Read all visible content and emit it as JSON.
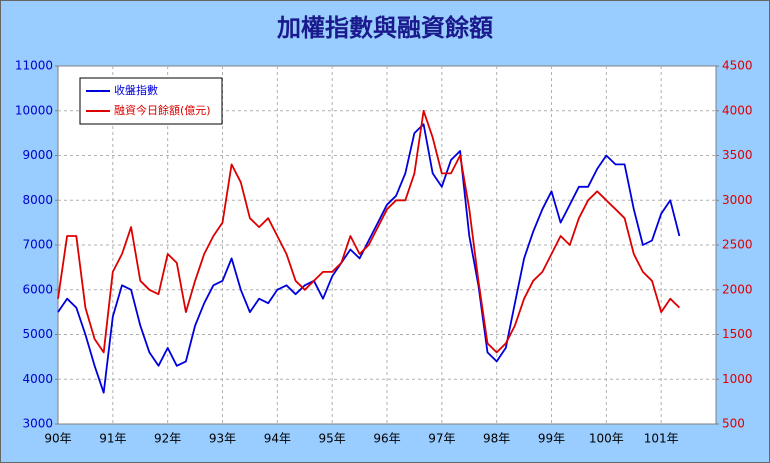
{
  "chart_data": {
    "type": "line",
    "title": "加權指數與融資餘額",
    "categories": [
      "90年",
      null,
      null,
      null,
      null,
      null,
      "91年",
      null,
      null,
      null,
      null,
      null,
      "92年",
      null,
      null,
      null,
      null,
      null,
      "93年",
      null,
      null,
      null,
      null,
      null,
      "94年",
      null,
      null,
      null,
      null,
      null,
      "95年",
      null,
      null,
      null,
      null,
      null,
      "96年",
      null,
      null,
      null,
      null,
      null,
      "97年",
      null,
      null,
      null,
      null,
      null,
      "98年",
      null,
      null,
      null,
      null,
      null,
      "99年",
      null,
      null,
      null,
      null,
      null,
      "100年",
      null,
      null,
      null,
      null,
      null,
      "101年",
      null,
      null,
      null,
      null,
      null
    ],
    "series": [
      {
        "name": "收盤指數",
        "color": "#0000dd",
        "axis": "y",
        "values": [
          5500,
          5800,
          5600,
          5000,
          4300,
          3700,
          5400,
          6100,
          6000,
          5200,
          4600,
          4300,
          4700,
          4300,
          4400,
          5200,
          5700,
          6100,
          6200,
          6700,
          6000,
          5500,
          5800,
          5700,
          6000,
          6100,
          5900,
          6100,
          6200,
          5800,
          6300,
          6600,
          6900,
          6700,
          7100,
          7500,
          7900,
          8100,
          8600,
          9500,
          9700,
          8600,
          8300,
          8900,
          9100,
          7200,
          6100,
          4600,
          4400,
          4700,
          5700,
          6700,
          7300,
          7800,
          8200,
          7500,
          7900,
          8300,
          8300,
          8700,
          9000,
          8800,
          8800,
          7800,
          7000,
          7100,
          7700,
          8000,
          7200,
          null,
          null,
          null
        ]
      },
      {
        "name": "融資今日餘額(億元)",
        "color": "#dd0000",
        "axis": "y2",
        "values": [
          1900,
          2600,
          2600,
          1800,
          1450,
          1300,
          2200,
          2400,
          2700,
          2100,
          2000,
          1950,
          2400,
          2300,
          1750,
          2100,
          2400,
          2600,
          2750,
          3400,
          3200,
          2800,
          2700,
          2800,
          2600,
          2400,
          2100,
          2000,
          2100,
          2200,
          2200,
          2300,
          2600,
          2400,
          2500,
          2700,
          2900,
          3000,
          3000,
          3300,
          4000,
          3700,
          3300,
          3300,
          3500,
          2900,
          2100,
          1400,
          1300,
          1400,
          1600,
          1900,
          2100,
          2200,
          2400,
          2600,
          2500,
          2800,
          3000,
          3100,
          3000,
          2900,
          2800,
          2400,
          2200,
          2100,
          1750,
          1900,
          1800,
          null,
          null,
          null
        ]
      }
    ],
    "ylim": [
      3000,
      11000
    ],
    "yticks": [
      3000,
      4000,
      5000,
      6000,
      7000,
      8000,
      9000,
      10000,
      11000
    ],
    "y2lim": [
      500,
      4500
    ],
    "y2ticks": [
      500,
      1000,
      1500,
      2000,
      2500,
      3000,
      3500,
      4000,
      4500
    ],
    "grid": true,
    "legend": "upper left"
  }
}
